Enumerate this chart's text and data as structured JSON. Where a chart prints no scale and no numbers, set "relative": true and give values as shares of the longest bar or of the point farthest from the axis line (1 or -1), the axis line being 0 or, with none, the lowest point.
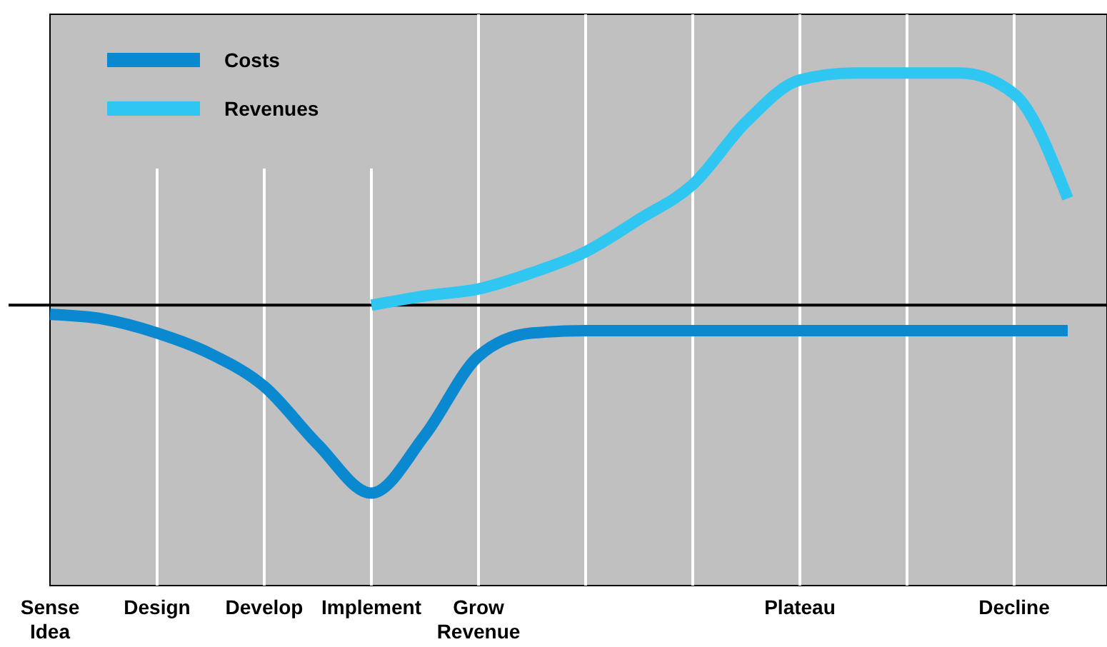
{
  "chart_data": {
    "type": "line",
    "relative": true,
    "categories": [
      "Sense Idea",
      null,
      "Design",
      null,
      "Develop",
      null,
      "Implement",
      null,
      "Grow Revenue",
      null,
      null,
      null,
      null,
      null,
      "Plateau",
      null,
      null,
      null,
      "Decline",
      null
    ],
    "grid": "x",
    "legend": "top left",
    "line_style": "solid",
    "series": [
      {
        "name": "Costs",
        "color": "#0a88d0",
        "values": [
          -0.04,
          -0.06,
          -0.12,
          -0.21,
          -0.35,
          -0.6,
          -0.81,
          -0.56,
          -0.22,
          -0.12,
          -0.11,
          -0.11,
          -0.11,
          -0.11,
          -0.11,
          -0.11,
          -0.11,
          -0.11,
          -0.11,
          -0.11
        ]
      },
      {
        "name": "Revenues",
        "color": "#30c6f2",
        "values": [
          null,
          null,
          null,
          null,
          null,
          null,
          0,
          0.04,
          0.07,
          0.14,
          0.23,
          0.37,
          0.52,
          0.79,
          0.97,
          1,
          1,
          1,
          0.91,
          0.46
        ]
      }
    ]
  }
}
